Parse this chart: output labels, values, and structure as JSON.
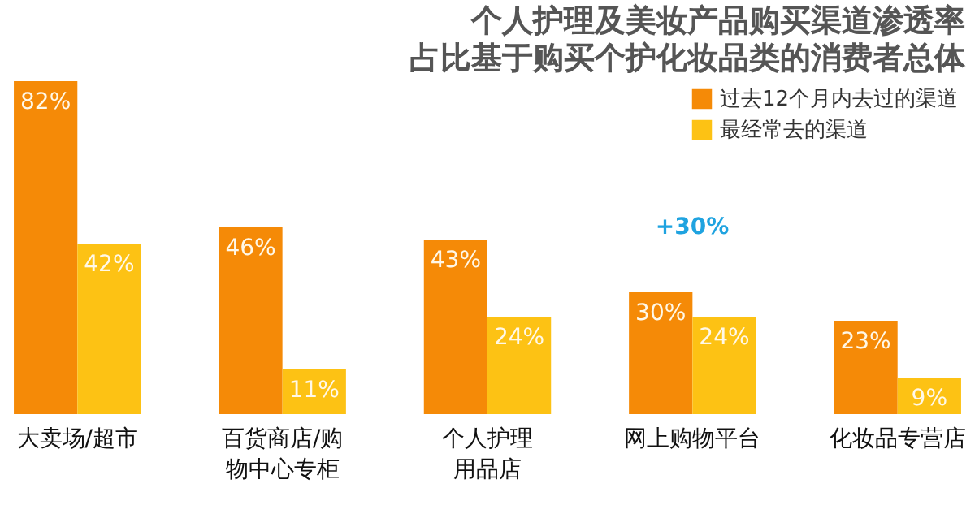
{
  "chart_data": {
    "type": "bar",
    "title": "个人护理及美妆产品购买渠道渗透率",
    "subtitle": "占比基于购买个护化妆品类的消费者总体",
    "categories": [
      "大卖场/超市",
      "百货商店/购物中心专柜",
      "个人护理用品店",
      "网上购物平台",
      "化妆品专营店"
    ],
    "series": [
      {
        "name": "过去12个月内去过的渠道",
        "color": "#f58a07",
        "values": [
          82,
          46,
          43,
          30,
          23
        ],
        "value_labels": [
          "82%",
          "46%",
          "43%",
          "30%",
          "23%"
        ]
      },
      {
        "name": "最经常去的渠道",
        "color": "#fdc214",
        "values": [
          42,
          11,
          24,
          24,
          9
        ],
        "value_labels": [
          "42%",
          "11%",
          "24%",
          "24%",
          "9%"
        ]
      }
    ],
    "legend": "top right",
    "annotations": [
      "+30%"
    ]
  }
}
